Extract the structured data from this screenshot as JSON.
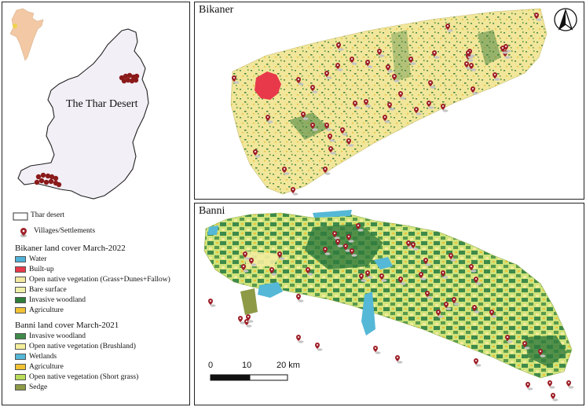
{
  "overview": {
    "thar_label": "The Thar Desert"
  },
  "legend": {
    "thar_desert": "Thar desert",
    "villages": "Villages/Settlements",
    "bikaner_heading": "Bikaner land cover March-2022",
    "bikaner_classes": [
      {
        "label": "Water",
        "color": "#4fb3d9"
      },
      {
        "label": "Built-up",
        "color": "#e8394a"
      },
      {
        "label": "Open native vegetation (Grass+Dunes+Fallow)",
        "color": "#f3e9a0"
      },
      {
        "label": "Bare surface",
        "color": "#eef0a8"
      },
      {
        "label": "Invasive woodland",
        "color": "#2e7d3a"
      },
      {
        "label": "Agriculture",
        "color": "#f0c234"
      }
    ],
    "banni_heading": "Banni land cover March-2021",
    "banni_classes": [
      {
        "label": "Invasive woodland",
        "color": "#3e8a4a"
      },
      {
        "label": "Open native vegetation (Brushland)",
        "color": "#f5ef9c"
      },
      {
        "label": "Wetlands",
        "color": "#55b8d6"
      },
      {
        "label": "Agriculture",
        "color": "#f0c234"
      },
      {
        "label": "Open native vegetation (Short grass)",
        "color": "#b9dc5a"
      },
      {
        "label": "Sedge",
        "color": "#8e9a45"
      }
    ]
  },
  "bikaner": {
    "title": "Bikaner"
  },
  "banni": {
    "title": "Banni"
  },
  "scale_bar": {
    "labels": [
      "0",
      "10",
      "20 km"
    ]
  },
  "north_arrow": "north-arrow-icon"
}
